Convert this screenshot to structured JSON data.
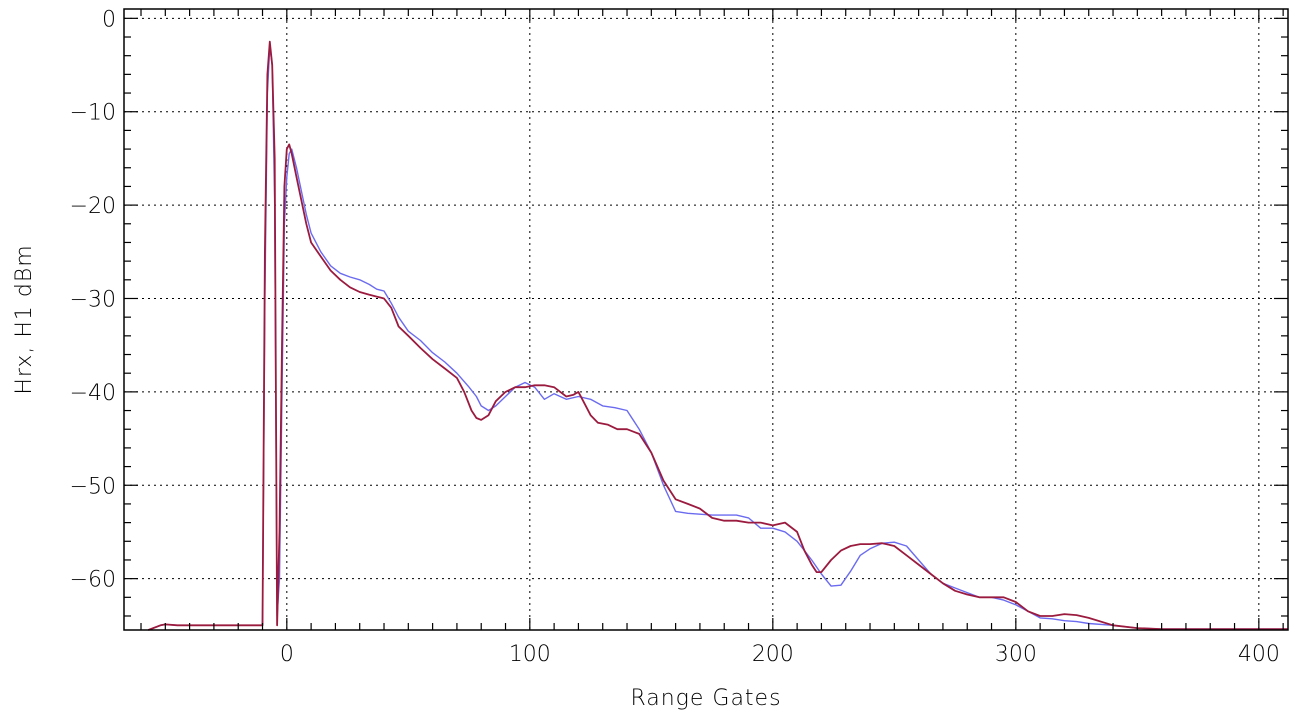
{
  "chart_data": {
    "type": "line",
    "title": "",
    "xlabel": "Range Gates",
    "ylabel": "Hrx, H1 dBm",
    "xlim": [
      -67,
      412
    ],
    "ylim": [
      -65.5,
      1
    ],
    "xticks": [
      0,
      100,
      200,
      300,
      400
    ],
    "yticks": [
      0,
      -10,
      -20,
      -30,
      -40,
      -50,
      -60
    ],
    "grid": true,
    "legend": "none",
    "series": [
      {
        "color": "#6b6bf0",
        "x": [
          -57,
          -52,
          -50,
          -45,
          -40,
          -30,
          -20,
          -12,
          -10,
          -9,
          -8,
          -7,
          -6,
          -5,
          -4,
          -3,
          -2,
          -1,
          0,
          1,
          2,
          4,
          6,
          8,
          10,
          14,
          18,
          22,
          26,
          30,
          34,
          37,
          40,
          43,
          46,
          50,
          55,
          60,
          65,
          70,
          75,
          78,
          80,
          83,
          86,
          90,
          94,
          98,
          102,
          106,
          110,
          115,
          120,
          125,
          130,
          135,
          140,
          145,
          150,
          155,
          160,
          165,
          170,
          175,
          180,
          185,
          190,
          195,
          200,
          205,
          210,
          213,
          216,
          220,
          224,
          228,
          232,
          236,
          240,
          245,
          250,
          255,
          260,
          265,
          270,
          275,
          280,
          285,
          290,
          295,
          300,
          305,
          310,
          315,
          320,
          325,
          330,
          340,
          350,
          360,
          380,
          400,
          412
        ],
        "y": [
          -65.5,
          -65,
          -64.9,
          -65,
          -65,
          -65,
          -65,
          -65,
          -65,
          -30,
          -8,
          -3,
          -5,
          -20,
          -64,
          -60,
          -40,
          -22,
          -17,
          -14.5,
          -14,
          -16,
          -18.5,
          -21,
          -23,
          -25,
          -26.5,
          -27.3,
          -27.7,
          -28,
          -28.5,
          -29,
          -29.2,
          -30.5,
          -32,
          -33.5,
          -34.5,
          -35.8,
          -36.8,
          -38,
          -39.5,
          -40.5,
          -41.5,
          -42,
          -41.5,
          -40.5,
          -39.5,
          -39,
          -39.5,
          -40.8,
          -40.2,
          -40.8,
          -40.5,
          -40.8,
          -41.5,
          -41.7,
          -42,
          -44,
          -46.5,
          -50,
          -52.8,
          -53,
          -53.1,
          -53.2,
          -53.2,
          -53.2,
          -53.5,
          -54.6,
          -54.6,
          -55,
          -56,
          -57,
          -58,
          -59.5,
          -60.8,
          -60.7,
          -59.2,
          -57.5,
          -56.8,
          -56.2,
          -56.1,
          -56.5,
          -58,
          -59.5,
          -60.5,
          -61,
          -61.5,
          -62,
          -62,
          -62.3,
          -62.8,
          -63.5,
          -64.2,
          -64.3,
          -64.5,
          -64.6,
          -64.8,
          -65,
          -65.3,
          -65.4,
          -65.4,
          -65.4,
          -65.4
        ]
      },
      {
        "color": "#9b1b3f",
        "x": [
          -57,
          -52,
          -50,
          -45,
          -40,
          -30,
          -20,
          -12,
          -10,
          -9,
          -8,
          -7,
          -6,
          -5,
          -4,
          -3,
          -2,
          -1,
          0,
          1,
          2,
          4,
          6,
          8,
          10,
          14,
          18,
          22,
          26,
          30,
          34,
          37,
          40,
          43,
          46,
          50,
          55,
          60,
          65,
          70,
          73,
          76,
          78,
          80,
          83,
          86,
          90,
          94,
          98,
          102,
          106,
          110,
          115,
          118,
          120,
          122,
          125,
          128,
          132,
          136,
          140,
          145,
          150,
          155,
          160,
          165,
          170,
          175,
          180,
          185,
          190,
          195,
          200,
          205,
          210,
          213,
          216,
          218,
          220,
          224,
          228,
          232,
          236,
          240,
          245,
          250,
          255,
          260,
          265,
          270,
          275,
          280,
          285,
          290,
          295,
          300,
          305,
          310,
          315,
          320,
          325,
          330,
          340,
          350,
          360,
          380,
          400,
          412
        ],
        "y": [
          -65.5,
          -65,
          -64.9,
          -65,
          -65,
          -65,
          -65,
          -65,
          -65,
          -25,
          -6,
          -2.5,
          -5,
          -15,
          -65,
          -55,
          -35,
          -18,
          -14,
          -13.5,
          -14.5,
          -17,
          -19.5,
          -22,
          -24,
          -25.5,
          -27,
          -28,
          -28.8,
          -29.3,
          -29.6,
          -29.8,
          -30,
          -31,
          -33,
          -34,
          -35.3,
          -36.5,
          -37.5,
          -38.5,
          -40,
          -42,
          -42.8,
          -43,
          -42.5,
          -41,
          -40,
          -39.5,
          -39.5,
          -39.3,
          -39.3,
          -39.5,
          -40.5,
          -40.3,
          -40,
          -41,
          -42.5,
          -43.3,
          -43.5,
          -44,
          -44,
          -44.5,
          -46.5,
          -49.5,
          -51.5,
          -52,
          -52.5,
          -53.5,
          -53.8,
          -53.8,
          -54,
          -54,
          -54.3,
          -54,
          -55,
          -57,
          -58.5,
          -59.3,
          -59.3,
          -58,
          -57,
          -56.5,
          -56.3,
          -56.3,
          -56.2,
          -56.5,
          -57.5,
          -58.5,
          -59.5,
          -60.5,
          -61.3,
          -61.7,
          -62,
          -62,
          -62,
          -62.5,
          -63.5,
          -64,
          -64,
          -63.8,
          -63.9,
          -64.2,
          -65,
          -65.3,
          -65.4,
          -65.4,
          -65.4,
          -65.4
        ]
      }
    ]
  }
}
